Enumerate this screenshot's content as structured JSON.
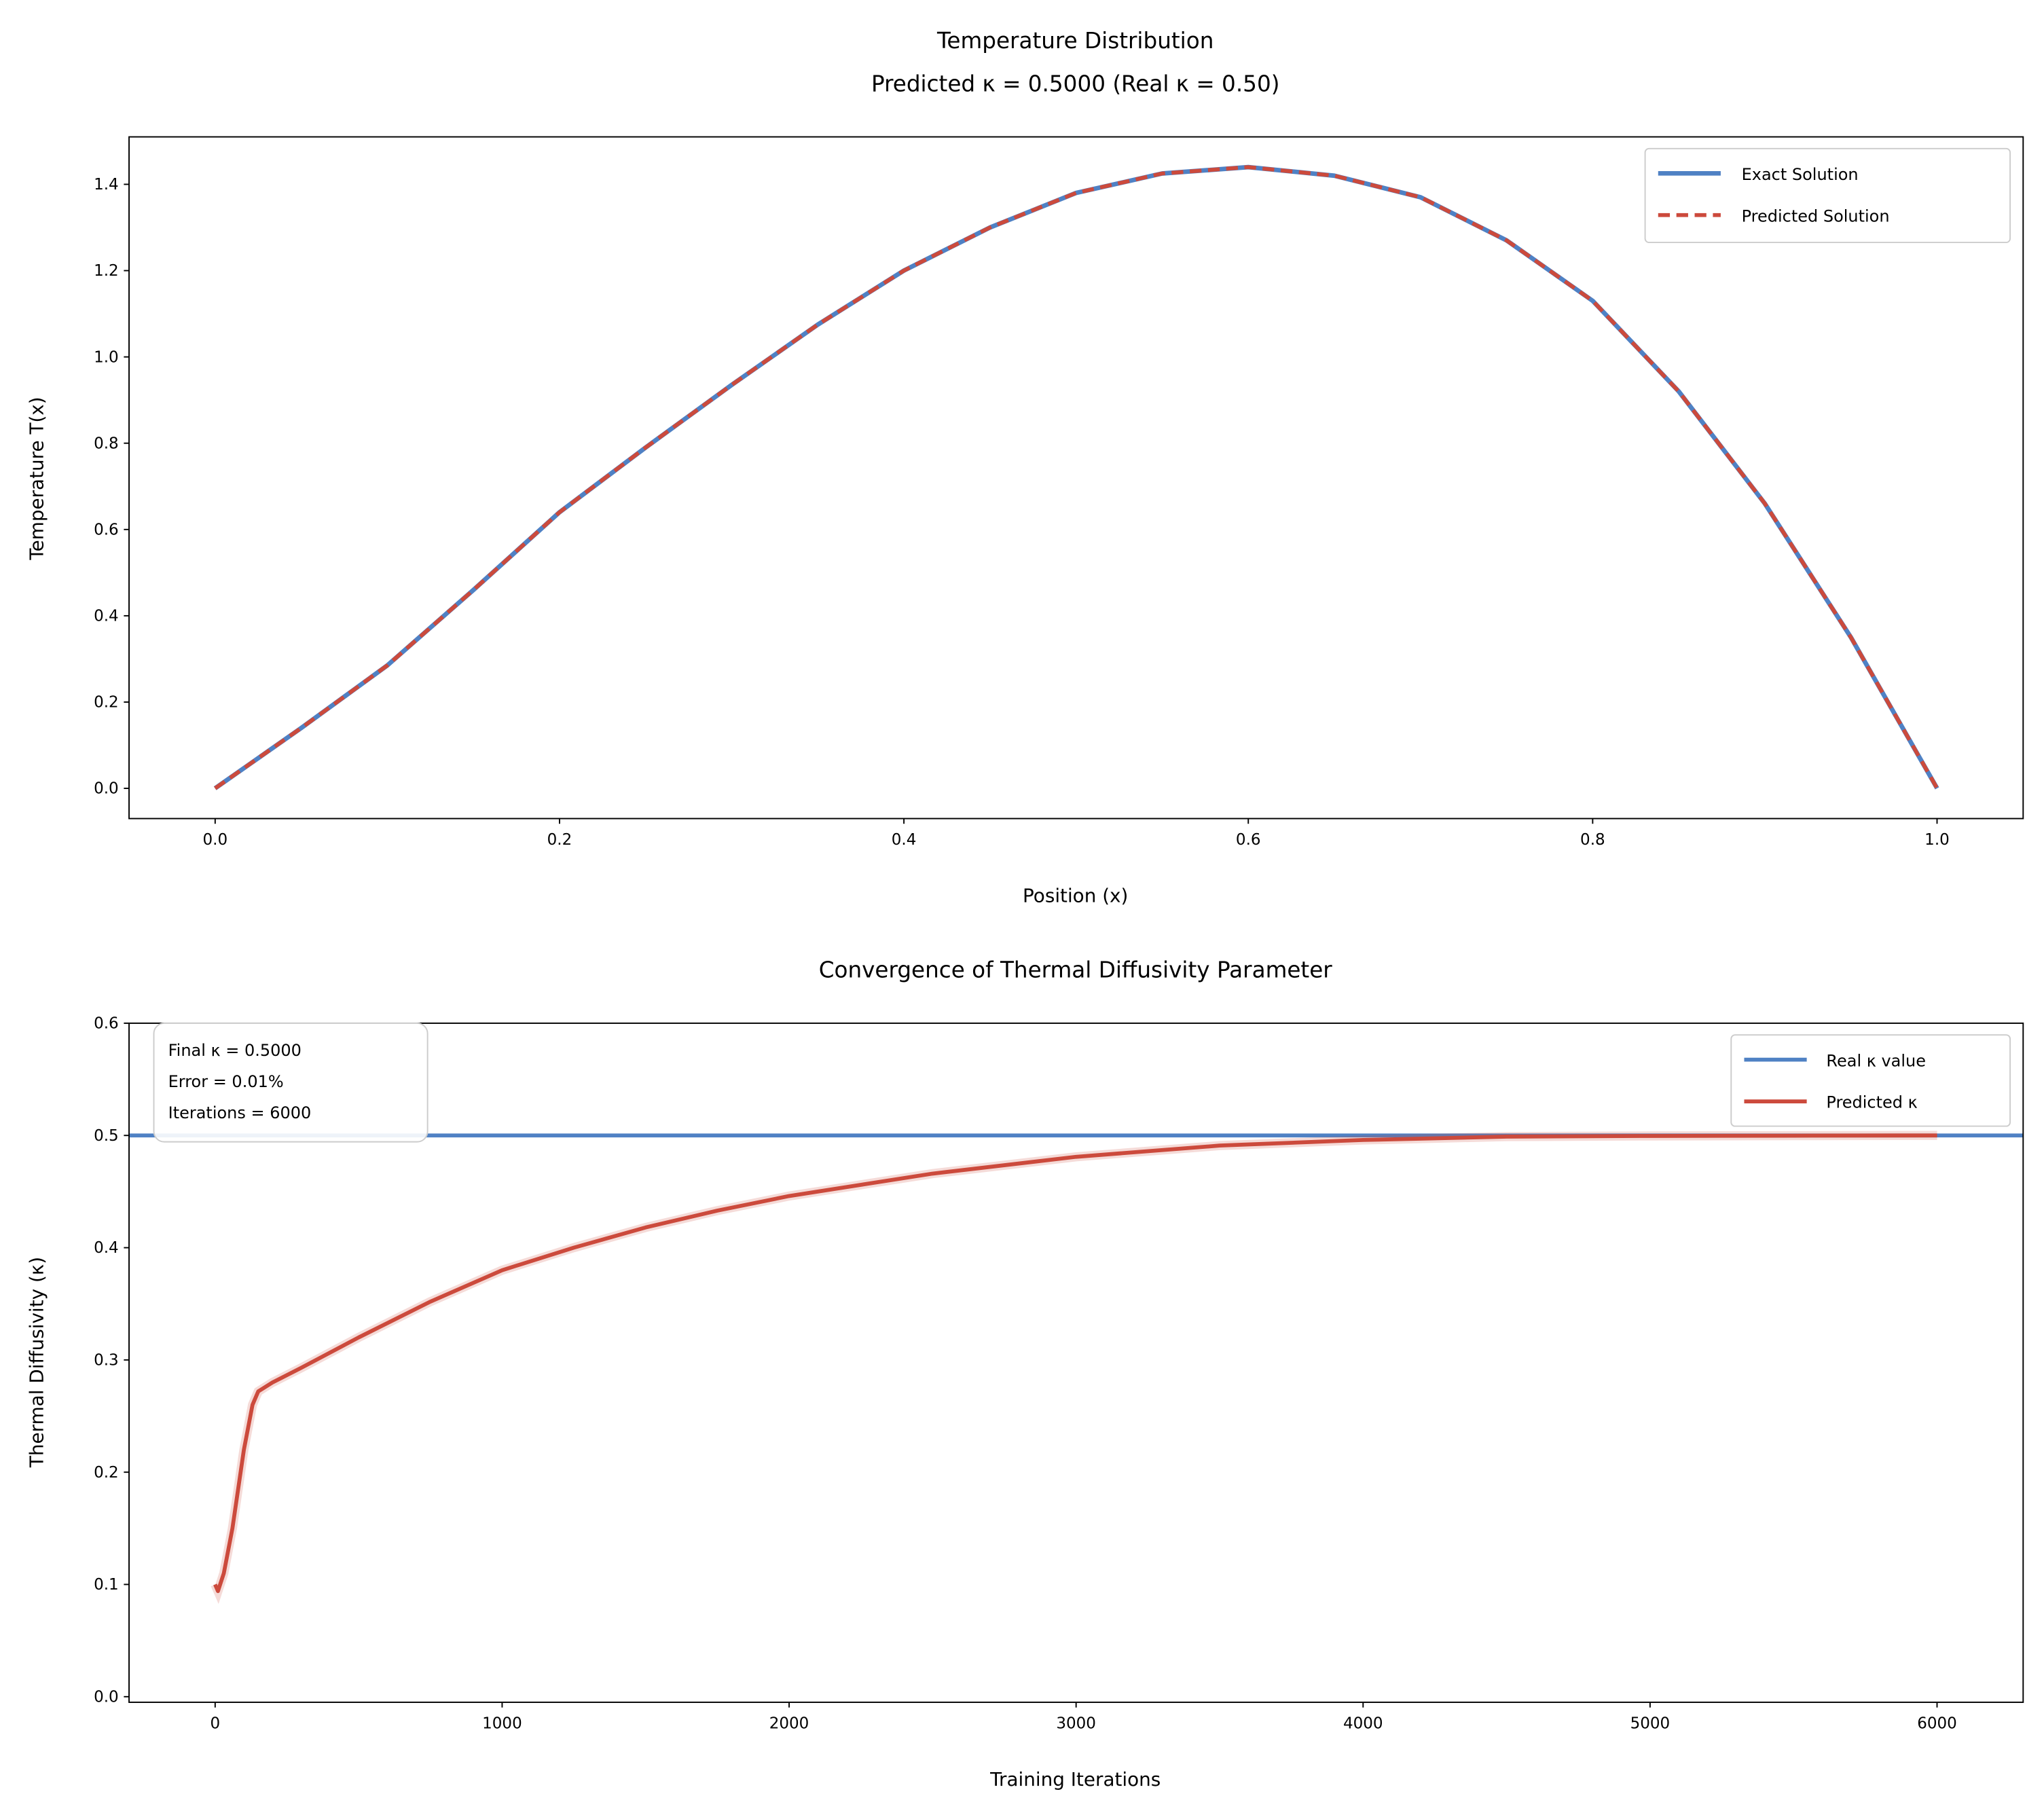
{
  "chart_data": [
    {
      "type": "line",
      "title": "Temperature Distribution",
      "subtitle": "Predicted κ = 0.5000 (Real κ = 0.50)",
      "xlabel": "Position (x)",
      "ylabel": "Temperature T(x)",
      "xlim": [
        -0.05,
        1.05
      ],
      "ylim": [
        -0.07,
        1.51
      ],
      "xticks": [
        "0.0",
        "0.2",
        "0.4",
        "0.6",
        "0.8",
        "1.0"
      ],
      "yticks": [
        "0.0",
        "0.2",
        "0.4",
        "0.6",
        "0.8",
        "1.0",
        "1.2",
        "1.4"
      ],
      "legend_position": "top-right",
      "x": [
        0,
        0.05,
        0.1,
        0.15,
        0.2,
        0.25,
        0.3,
        0.35,
        0.4,
        0.45,
        0.5,
        0.55,
        0.6,
        0.65,
        0.7,
        0.75,
        0.8,
        0.85,
        0.9,
        0.95,
        1.0
      ],
      "series": [
        {
          "name": "Exact Solution",
          "color": "#4f81c4",
          "style": "solid",
          "values": [
            0,
            0.14,
            0.285,
            0.46,
            0.64,
            0.79,
            0.935,
            1.075,
            1.2,
            1.3,
            1.38,
            1.425,
            1.44,
            1.42,
            1.37,
            1.27,
            1.13,
            0.92,
            0.66,
            0.35,
            0
          ]
        },
        {
          "name": "Predicted Solution",
          "color": "#cc4a3c",
          "style": "dashed",
          "values": [
            0,
            0.14,
            0.285,
            0.46,
            0.64,
            0.79,
            0.935,
            1.075,
            1.2,
            1.3,
            1.38,
            1.425,
            1.44,
            1.42,
            1.37,
            1.27,
            1.13,
            0.92,
            0.66,
            0.35,
            0
          ]
        }
      ]
    },
    {
      "type": "line",
      "title": "Convergence of Thermal Diffusivity Parameter",
      "xlabel": "Training Iterations",
      "ylabel": "Thermal Diffusivity (κ)",
      "xlim": [
        -300,
        6300
      ],
      "ylim": [
        -0.005,
        0.6
      ],
      "xticks": [
        "0",
        "1000",
        "2000",
        "3000",
        "4000",
        "5000",
        "6000"
      ],
      "yticks": [
        "0.0",
        "0.1",
        "0.2",
        "0.3",
        "0.4",
        "0.5",
        "0.6"
      ],
      "legend_position": "top-right",
      "annotation": [
        "Final κ = 0.5000",
        "Error = 0.01%",
        "Iterations = 6000"
      ],
      "reference_line": {
        "name": "Real κ value",
        "value": 0.5,
        "color": "#4f81c4"
      },
      "series": [
        {
          "name": "Predicted κ",
          "color": "#cc4a3c",
          "x": [
            0,
            10,
            30,
            60,
            100,
            130,
            150,
            200,
            300,
            500,
            750,
            1000,
            1250,
            1500,
            1750,
            2000,
            2500,
            3000,
            3500,
            4000,
            4500,
            5000,
            5500,
            6000
          ],
          "values": [
            0.1,
            0.094,
            0.11,
            0.15,
            0.22,
            0.26,
            0.272,
            0.28,
            0.293,
            0.32,
            0.352,
            0.38,
            0.4,
            0.418,
            0.433,
            0.446,
            0.466,
            0.481,
            0.491,
            0.496,
            0.499,
            0.4995,
            0.4998,
            0.5
          ]
        }
      ]
    }
  ]
}
